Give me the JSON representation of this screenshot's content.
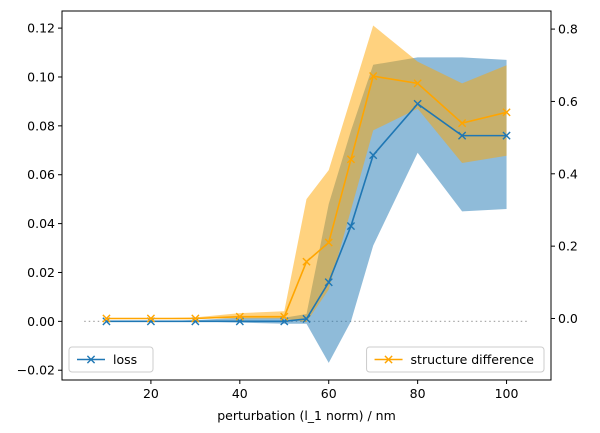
{
  "chart_data": {
    "type": "line",
    "xlabel": "perturbation (l_1 norm) / nm",
    "x_ticks": [
      20,
      40,
      60,
      80,
      100
    ],
    "xlim": [
      0,
      110
    ],
    "left_axis": {
      "ylim": [
        -0.024,
        0.127
      ],
      "ticks": [
        -0.02,
        0.0,
        0.02,
        0.04,
        0.06,
        0.08,
        0.1,
        0.12
      ],
      "tick_labels": [
        "−0.02",
        "0.00",
        "0.02",
        "0.04",
        "0.06",
        "0.08",
        "0.10",
        "0.12"
      ]
    },
    "right_axis": {
      "ylim": [
        -0.17,
        0.85
      ],
      "ticks": [
        0.0,
        0.2,
        0.4,
        0.6,
        0.8
      ],
      "tick_labels": [
        "0.0",
        "0.2",
        "0.4",
        "0.6",
        "0.8"
      ]
    },
    "reference_line": {
      "y": 0.0,
      "x_range": [
        5,
        105
      ],
      "style": "dotted"
    },
    "series": [
      {
        "name": "loss",
        "axis": "left",
        "color": "#1f77b4",
        "marker": "x",
        "x": [
          10,
          20,
          30,
          40,
          50,
          55,
          60,
          65,
          70,
          80,
          90,
          100
        ],
        "y": [
          0.0,
          0.0,
          0.0,
          0.0,
          0.0,
          0.001,
          0.016,
          0.039,
          0.068,
          0.089,
          0.076,
          0.076
        ],
        "lower": [
          0.0,
          0.0,
          0.0,
          -0.0005,
          -0.001,
          -0.001,
          -0.017,
          0.0,
          0.031,
          0.069,
          0.045,
          0.046
        ],
        "upper": [
          0.0,
          0.0,
          0.0005,
          0.0015,
          0.0015,
          0.003,
          0.048,
          0.078,
          0.105,
          0.108,
          0.108,
          0.107
        ]
      },
      {
        "name": "structure difference",
        "axis": "right",
        "color": "#ffa500",
        "marker": "x",
        "x": [
          10,
          20,
          30,
          40,
          50,
          55,
          60,
          65,
          70,
          80,
          90,
          100
        ],
        "y": [
          0.0,
          0.0,
          0.0,
          0.005,
          0.005,
          0.157,
          0.21,
          0.44,
          0.67,
          0.65,
          0.54,
          0.57
        ],
        "lower": [
          0.0,
          0.0,
          0.0,
          0.0,
          0.0,
          -0.01,
          0.08,
          0.3,
          0.52,
          0.58,
          0.43,
          0.45
        ],
        "upper": [
          0.0,
          0.0,
          0.003,
          0.015,
          0.02,
          0.33,
          0.41,
          0.61,
          0.81,
          0.71,
          0.65,
          0.7
        ]
      }
    ],
    "legends": [
      {
        "series": "loss",
        "position": "lower-left"
      },
      {
        "series": "structure difference",
        "position": "lower-right"
      }
    ],
    "grid": false
  }
}
